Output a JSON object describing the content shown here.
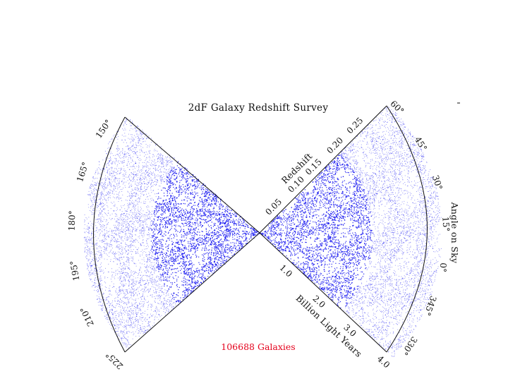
{
  "title": "2dF Galaxy Redshift Survey",
  "galaxy_count_label": "106688 Galaxies",
  "redshift_axis": {
    "title": "Redshift",
    "ticks": [
      "0.05",
      "0.10",
      "0.15",
      "0.20",
      "0.25"
    ]
  },
  "distance_axis": {
    "title": "Billion Light Years",
    "ticks": [
      "1.0",
      "2.0",
      "3.0",
      "4.0"
    ]
  },
  "angle_axis_title": "Angle on Sky",
  "left_wedge_angles": [
    "150°",
    "165°",
    "180°",
    "195°",
    "210°",
    "225°"
  ],
  "right_wedge_angles": [
    "60°",
    "45°",
    "30°",
    "15°",
    "0°",
    "345°",
    "330°"
  ],
  "colors": {
    "galaxies": "#1b1bf0",
    "count_text": "#e4001b",
    "outline": "#111111"
  }
}
